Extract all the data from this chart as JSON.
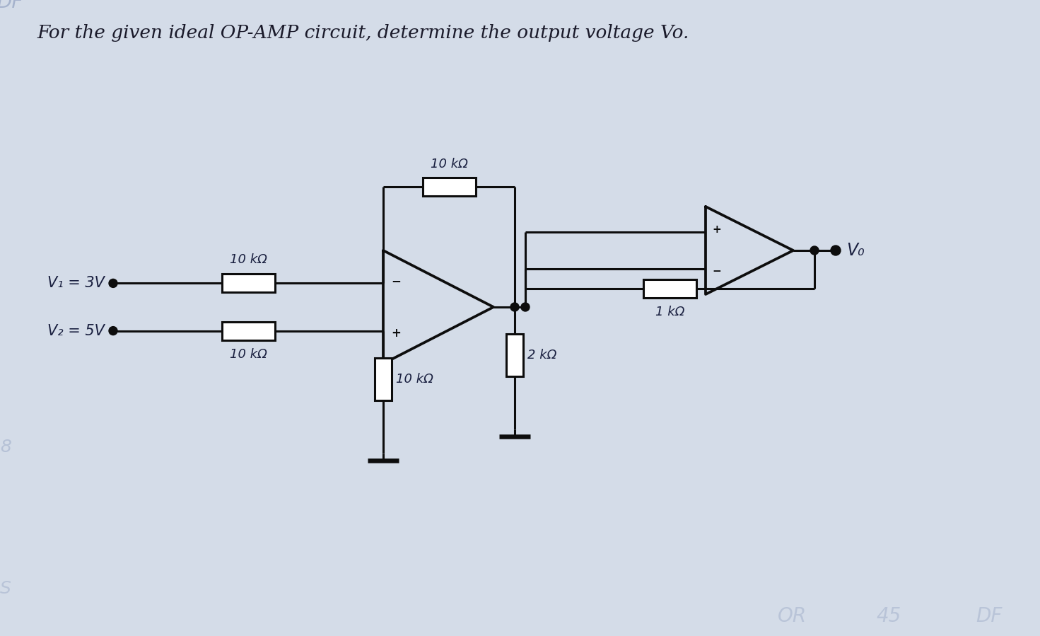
{
  "title": "For the given ideal OP-AMP circuit, determine the output voltage Vo.",
  "title_fontsize": 19,
  "bg_color": "#d4dce8",
  "line_color": "#0d0d0d",
  "text_color": "#1a1a2a",
  "circuit_text_color": "#1a2040",
  "label_fontsize": 14,
  "labels": {
    "V1": "V₁ = 3V",
    "V2": "V₂ = 5V",
    "Vo": "V₀",
    "R_in1": "10 kΩ",
    "R_in2": "10 kΩ",
    "R_fb1": "10 kΩ",
    "R_gnd1": "10 kΩ",
    "R_gnd2": "2 kΩ",
    "R_fb2": "1 kΩ"
  }
}
